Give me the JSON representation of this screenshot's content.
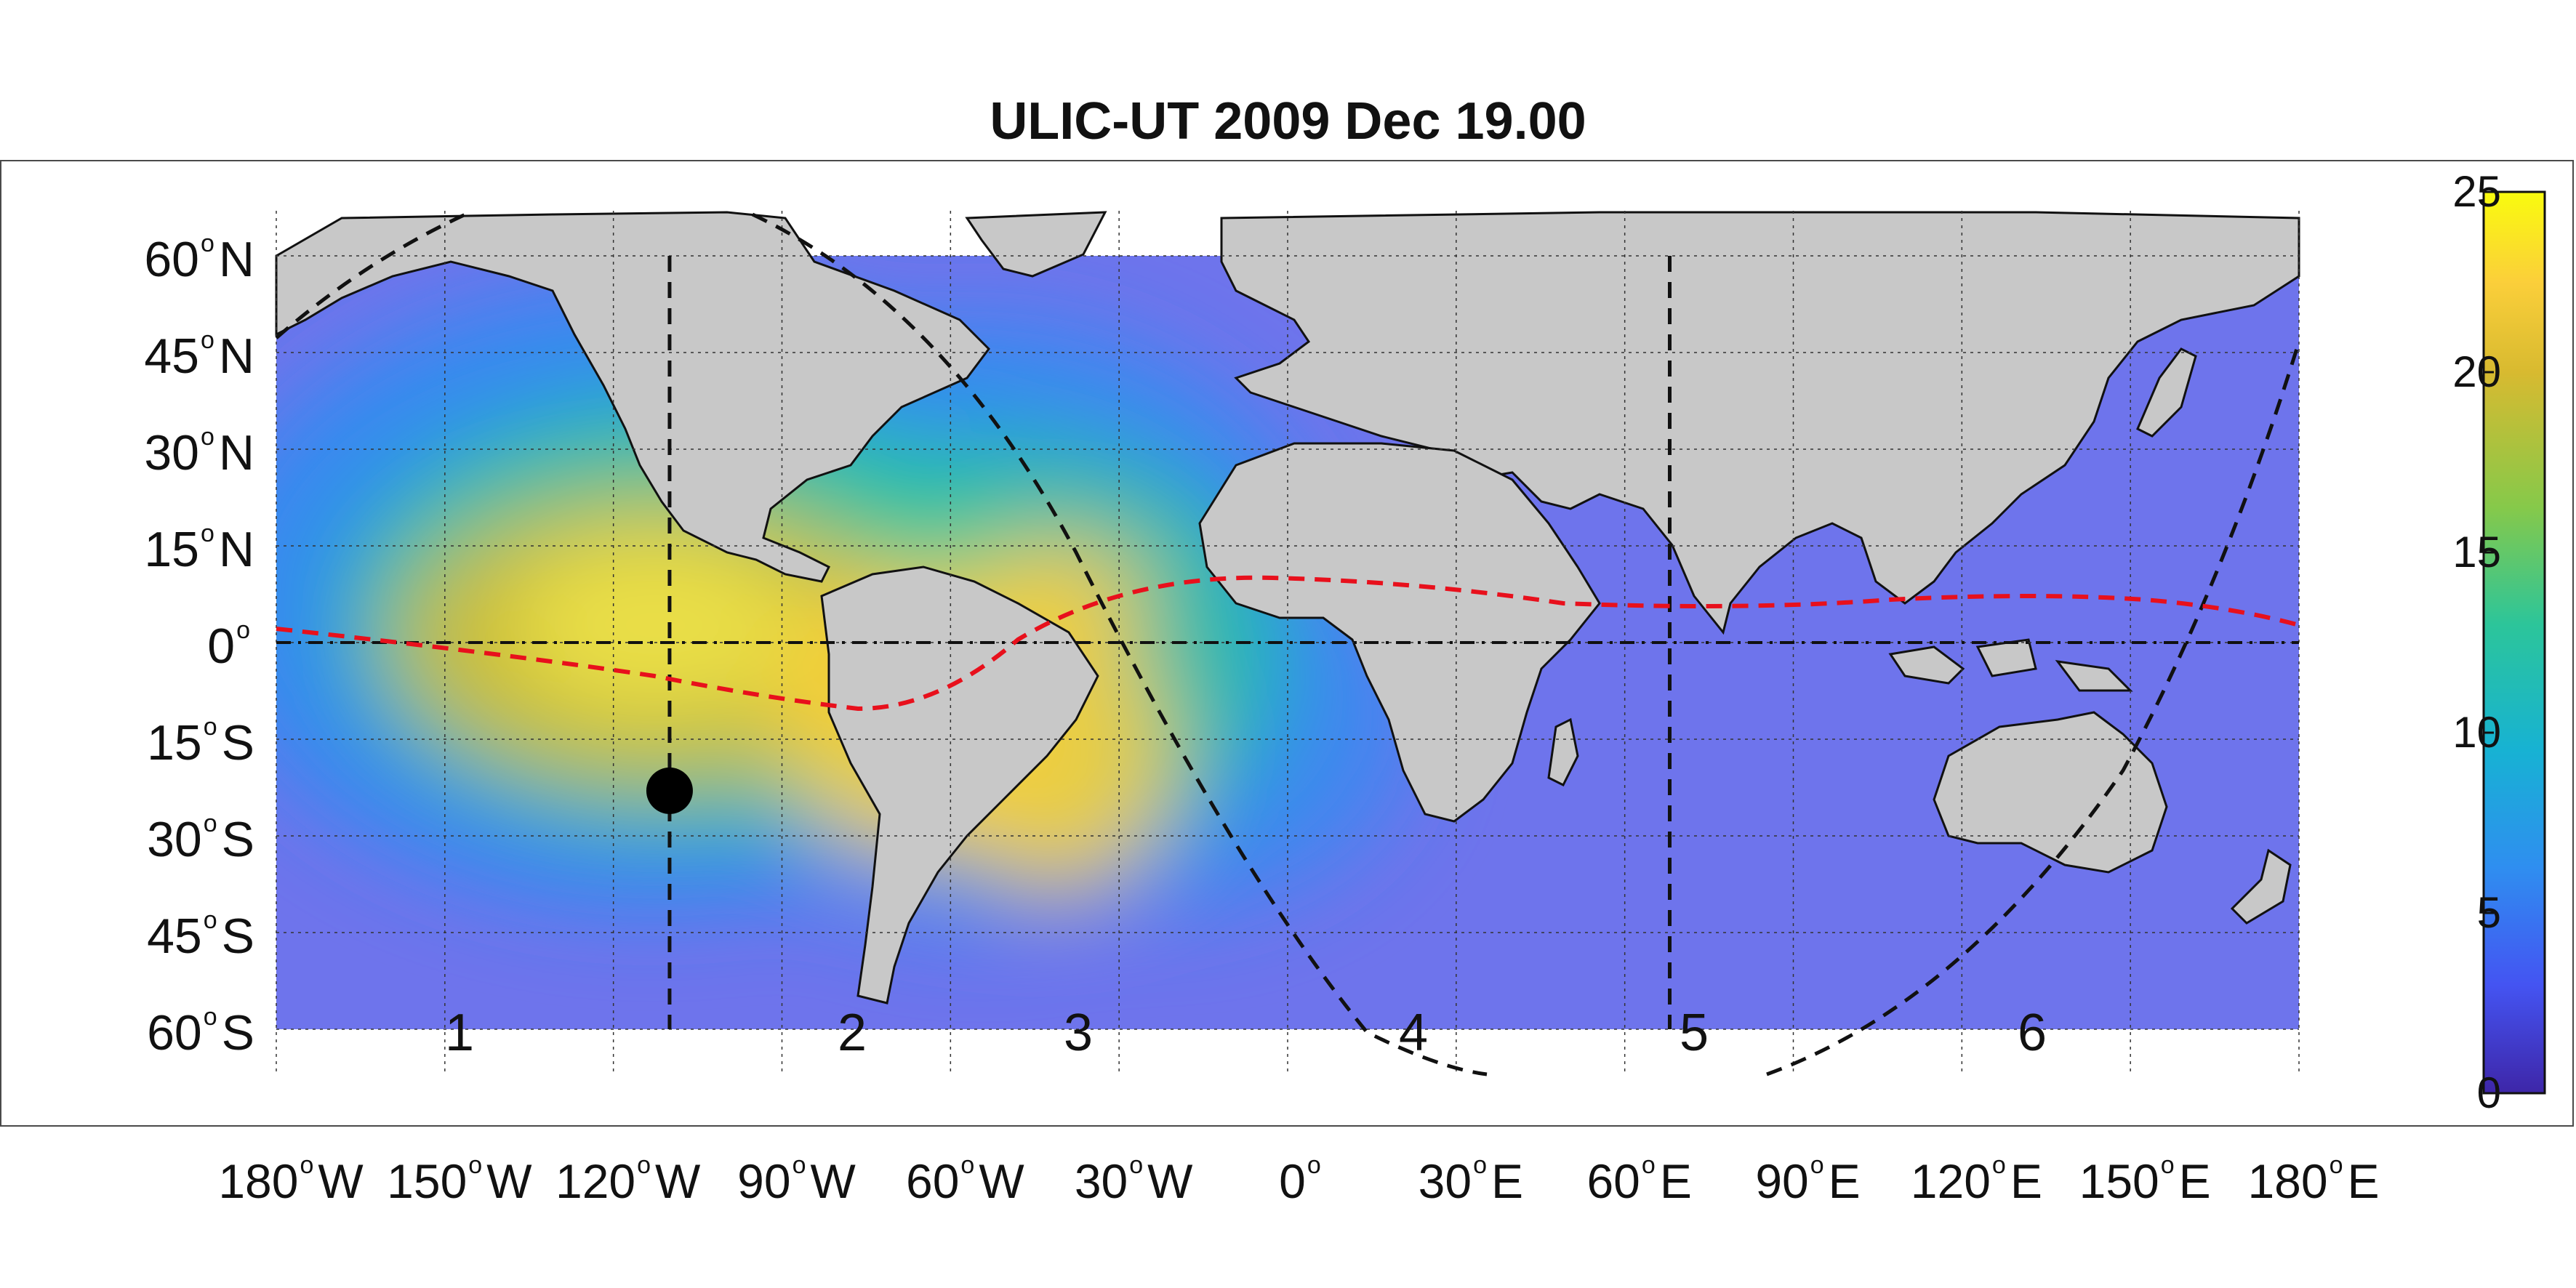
{
  "title": "ULIC-UT 2009 Dec 19.00",
  "lat_labels": [
    {
      "deg": "60",
      "hem": "N"
    },
    {
      "deg": "45",
      "hem": "N"
    },
    {
      "deg": "30",
      "hem": "N"
    },
    {
      "deg": "15",
      "hem": "N"
    },
    {
      "deg": "0",
      "hem": ""
    },
    {
      "deg": "15",
      "hem": "S"
    },
    {
      "deg": "30",
      "hem": "S"
    },
    {
      "deg": "45",
      "hem": "S"
    },
    {
      "deg": "60",
      "hem": "S"
    }
  ],
  "lon_labels": [
    {
      "deg": "180",
      "hem": "W"
    },
    {
      "deg": "150",
      "hem": "W"
    },
    {
      "deg": "120",
      "hem": "W"
    },
    {
      "deg": "90",
      "hem": "W"
    },
    {
      "deg": "60",
      "hem": "W"
    },
    {
      "deg": "30",
      "hem": "W"
    },
    {
      "deg": "0",
      "hem": ""
    },
    {
      "deg": "30",
      "hem": "E"
    },
    {
      "deg": "60",
      "hem": "E"
    },
    {
      "deg": "90",
      "hem": "E"
    },
    {
      "deg": "120",
      "hem": "E"
    },
    {
      "deg": "150",
      "hem": "E"
    },
    {
      "deg": "180",
      "hem": "E"
    }
  ],
  "zones": [
    "1",
    "2",
    "3",
    "4",
    "5",
    "6"
  ],
  "colorbar": {
    "ticks": [
      "25",
      "20",
      "15",
      "10",
      "5",
      "0"
    ],
    "min": 0,
    "max": 25,
    "colors": [
      "#3e26a8",
      "#4454f2",
      "#2f8ef0",
      "#17b2d3",
      "#2cc59a",
      "#86c94a",
      "#d8ba30",
      "#fbcf3a",
      "#f9fb0e"
    ]
  },
  "marker": {
    "lon": -110,
    "lat": -23
  },
  "meridians": [
    -110,
    68
  ],
  "map": {
    "lon_range": [
      -180,
      180
    ],
    "lat_range": [
      -60,
      60
    ],
    "land_color": "#c8c8c8",
    "ocean_base": "#6e74ec"
  }
}
